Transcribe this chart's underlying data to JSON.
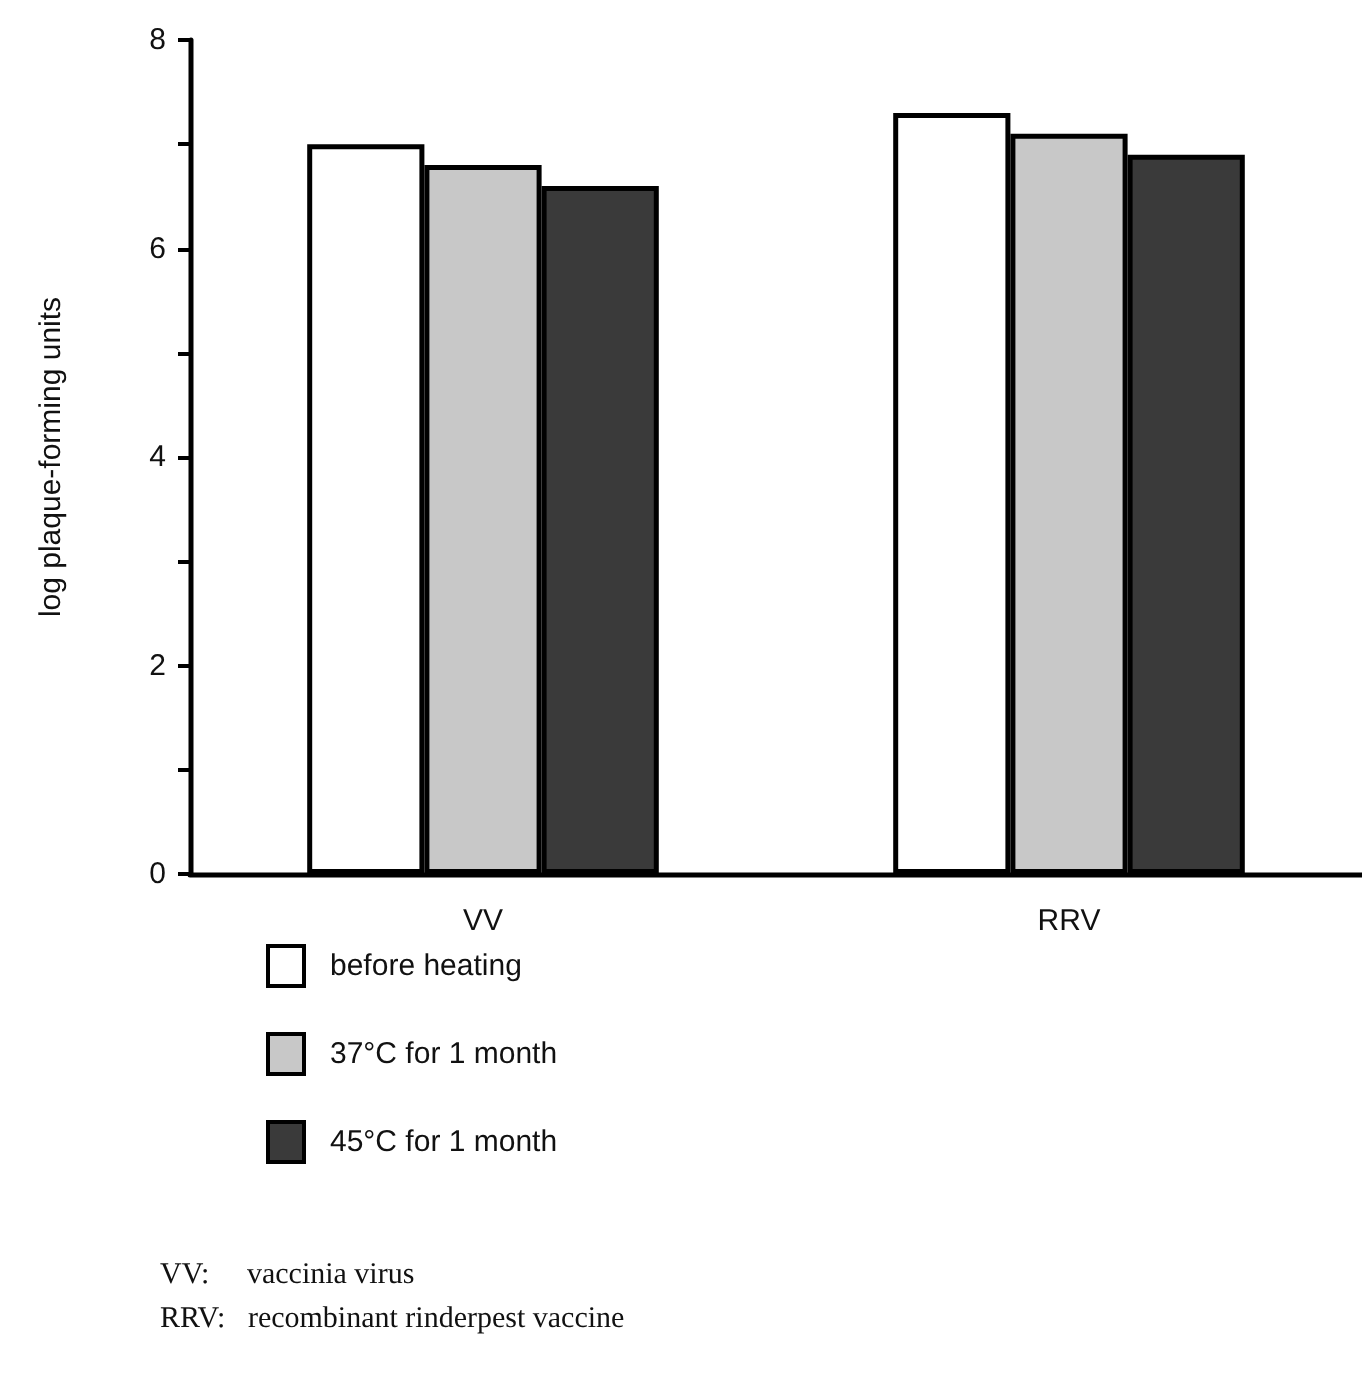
{
  "chart_data": {
    "type": "bar",
    "ylabel": "log plaque-forming units",
    "categories": [
      "VV",
      "RRV"
    ],
    "series": [
      {
        "name": "before heating",
        "color": "#ffffff",
        "values": [
          7.0,
          7.3
        ]
      },
      {
        "name": "37°C for 1 month",
        "color": "#c8c8c8",
        "values": [
          6.8,
          7.1
        ]
      },
      {
        "name": "45°C for 1 month",
        "color": "#3a3a3a",
        "values": [
          6.6,
          6.9
        ]
      }
    ],
    "ylim": [
      0,
      8
    ],
    "yticks": [
      0,
      {
        "value": 1,
        "label": null
      },
      2,
      {
        "value": 3,
        "label": null
      },
      4,
      {
        "value": 5,
        "label": null
      },
      6,
      {
        "value": 7,
        "label": null
      },
      8
    ],
    "grid": false,
    "legend": "bottom left",
    "annotations": [
      "VV:     vaccinia virus",
      "RRV:   recombinant rinderpest vaccine"
    ]
  }
}
